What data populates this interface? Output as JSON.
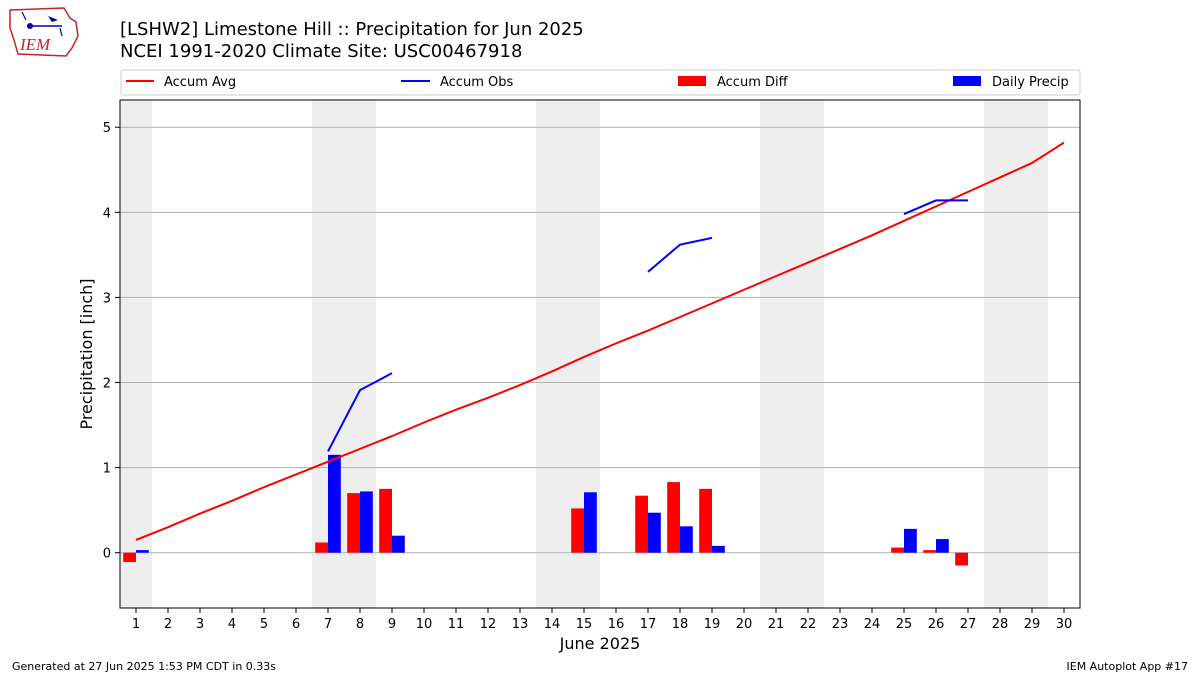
{
  "header": {
    "title": "[LSHW2] Limestone Hill :: Precipitation for Jun 2025",
    "subtitle": "NCEI 1991-2020 Climate Site: USC00467918",
    "logo_text": "IEM"
  },
  "footer": {
    "left": "Generated at 27 Jun 2025 1:53 PM CDT in 0.33s",
    "right": "IEM Autoplot App #17"
  },
  "colors": {
    "avg": "#ff0000",
    "obs": "#0000ff",
    "diff": "#ff0000",
    "daily": "#0000ff",
    "weekend": "#eeeeee",
    "grid": "#b0b0b0"
  },
  "chart_data": {
    "type": "bar",
    "xlabel": "June 2025",
    "ylabel": "Precipitation [inch]",
    "x": [
      1,
      2,
      3,
      4,
      5,
      6,
      7,
      8,
      9,
      10,
      11,
      12,
      13,
      14,
      15,
      16,
      17,
      18,
      19,
      20,
      21,
      22,
      23,
      24,
      25,
      26,
      27,
      28,
      29,
      30
    ],
    "xlim": [
      0.5,
      30.5
    ],
    "ylim": [
      -0.65,
      5.32
    ],
    "yticks": [
      0,
      1,
      2,
      3,
      4,
      5
    ],
    "grid": true,
    "weekend_days": [
      1,
      7,
      8,
      14,
      15,
      21,
      22,
      28,
      29
    ],
    "legend": {
      "placement": "top",
      "entries": [
        "Accum Avg",
        "Accum Obs",
        "Accum Diff",
        "Daily Precip"
      ]
    },
    "series": [
      {
        "name": "Accum Avg",
        "kind": "line",
        "values": [
          0.15,
          0.3,
          0.46,
          0.61,
          0.77,
          0.92,
          1.07,
          1.22,
          1.37,
          1.53,
          1.68,
          1.82,
          1.97,
          2.13,
          2.3,
          2.46,
          2.61,
          2.77,
          2.93,
          3.09,
          3.25,
          3.41,
          3.57,
          3.73,
          3.9,
          4.07,
          4.24,
          4.41,
          4.58,
          4.82
        ]
      },
      {
        "name": "Accum Obs",
        "kind": "line",
        "values": [
          null,
          null,
          null,
          null,
          null,
          null,
          1.19,
          1.91,
          2.11,
          null,
          null,
          null,
          null,
          null,
          null,
          null,
          3.3,
          3.62,
          3.7,
          null,
          null,
          null,
          null,
          null,
          3.98,
          4.14,
          4.14,
          null,
          null,
          null
        ]
      },
      {
        "name": "Accum Diff",
        "kind": "bar",
        "values": [
          -0.11,
          0,
          0,
          0,
          0,
          0,
          0.12,
          0.7,
          0.75,
          0,
          0,
          0,
          0,
          0,
          0.52,
          0,
          0.67,
          0.83,
          0.75,
          0,
          0,
          0,
          0,
          0,
          0.06,
          0.03,
          -0.15,
          0,
          0,
          0
        ]
      },
      {
        "name": "Daily Precip",
        "kind": "bar",
        "values": [
          0.03,
          0,
          0,
          0,
          0,
          0,
          1.15,
          0.72,
          0.2,
          0,
          0,
          0,
          0,
          0,
          0.71,
          0,
          0.47,
          0.31,
          0.08,
          0,
          0,
          0,
          0,
          0,
          0.28,
          0.16,
          0,
          0,
          0,
          0
        ]
      }
    ]
  }
}
